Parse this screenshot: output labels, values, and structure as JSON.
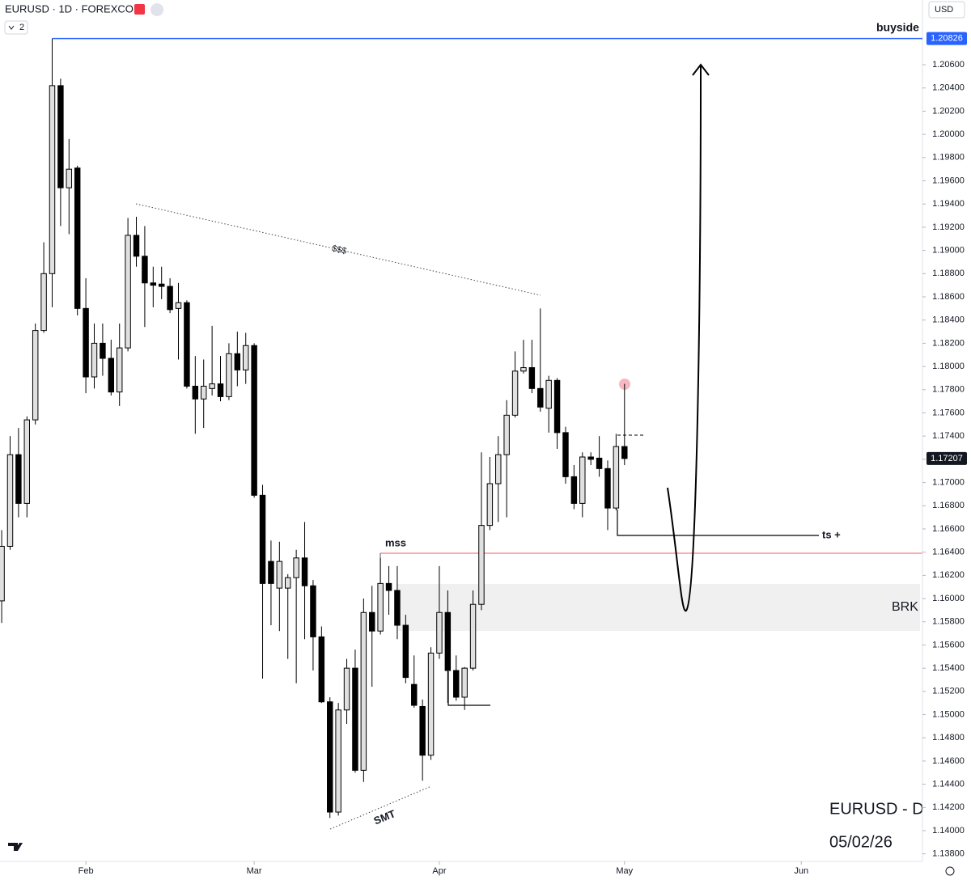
{
  "header": {
    "symbol": "EURUSD · 1D · FOREXCOM",
    "currency": "USD",
    "scale_button": "2"
  },
  "chart_data": {
    "type": "candlestick",
    "open": [
      1.1598,
      1.1645,
      1.1724,
      1.1682,
      1.1754,
      1.1831,
      1.188,
      1.2042,
      1.1954,
      1.1971,
      1.185,
      1.1791,
      1.182,
      1.1807,
      1.1778,
      1.1816,
      1.1913,
      1.1895,
      1.1872,
      1.1871,
      1.1869,
      1.185,
      1.1855,
      1.1783,
      1.1772,
      1.1781,
      1.1785,
      1.1774,
      1.1811,
      1.1797,
      1.1818,
      1.1689,
      1.1632,
      1.1609,
      1.1609,
      1.1618,
      1.1635,
      1.1611,
      1.1567,
      1.1511,
      1.1416,
      1.1504,
      1.154,
      1.1452,
      1.1588,
      1.1572,
      1.1613,
      1.1607,
      1.1577,
      1.1526,
      1.1507,
      1.1465,
      1.1553,
      1.1588,
      1.1538,
      1.1515,
      1.154,
      1.1595,
      1.1663,
      1.1699,
      1.1724,
      1.1758,
      1.1796,
      1.1799,
      1.1781,
      1.1764,
      1.1788,
      1.1743,
      1.1705,
      1.1682,
      1.1722,
      1.1721,
      1.1712,
      1.1678,
      1.1731
    ],
    "high": [
      1.1659,
      1.174,
      1.1747,
      1.1757,
      1.1837,
      1.1907,
      1.20826,
      1.2048,
      1.1996,
      1.1973,
      1.1876,
      1.1837,
      1.1837,
      1.1823,
      1.1837,
      1.1928,
      1.1929,
      1.1921,
      1.1886,
      1.1886,
      1.1876,
      1.1872,
      1.1857,
      1.1809,
      1.1806,
      1.1835,
      1.1809,
      1.182,
      1.183,
      1.1829,
      1.182,
      1.1698,
      1.165,
      1.1649,
      1.1621,
      1.1642,
      1.1666,
      1.1616,
      1.1576,
      1.1515,
      1.151,
      1.1548,
      1.1556,
      1.16,
      1.1611,
      1.1635,
      1.1628,
      1.1628,
      1.1586,
      1.1551,
      1.1513,
      1.1558,
      1.1628,
      1.1607,
      1.1551,
      1.1541,
      1.1607,
      1.1726,
      1.1722,
      1.174,
      1.1771,
      1.1813,
      1.1823,
      1.1823,
      1.185,
      1.1792,
      1.179,
      1.1748,
      1.1715,
      1.1726,
      1.1726,
      1.174,
      1.1719,
      1.1742,
      1.1785
    ],
    "low": [
      1.1579,
      1.1642,
      1.167,
      1.167,
      1.175,
      1.1829,
      1.1851,
      1.1921,
      1.1914,
      1.1844,
      1.1777,
      1.1781,
      1.1792,
      1.1775,
      1.1766,
      1.1813,
      1.1886,
      1.1834,
      1.1851,
      1.1858,
      1.1846,
      1.1806,
      1.1781,
      1.1742,
      1.1747,
      1.1775,
      1.177,
      1.1771,
      1.1783,
      1.1785,
      1.1687,
      1.1531,
      1.1577,
      1.1572,
      1.1548,
      1.1527,
      1.1565,
      1.1538,
      1.151,
      1.1411,
      1.1413,
      1.1492,
      1.145,
      1.1442,
      1.1524,
      1.1569,
      1.1586,
      1.1565,
      1.1527,
      1.1506,
      1.1443,
      1.1461,
      1.1548,
      1.151,
      1.1512,
      1.1504,
      1.1538,
      1.159,
      1.1659,
      1.1666,
      1.167,
      1.1756,
      1.1794,
      1.1777,
      1.1761,
      1.1743,
      1.1729,
      1.1699,
      1.1677,
      1.167,
      1.1715,
      1.1705,
      1.1659,
      1.1676,
      1.1715
    ],
    "close": [
      1.1645,
      1.1724,
      1.1682,
      1.1754,
      1.1831,
      1.188,
      1.2042,
      1.1954,
      1.197,
      1.185,
      1.1791,
      1.182,
      1.1807,
      1.1778,
      1.1816,
      1.1913,
      1.1895,
      1.1872,
      1.187,
      1.1869,
      1.1849,
      1.1855,
      1.1783,
      1.1772,
      1.1783,
      1.1785,
      1.1774,
      1.1811,
      1.1797,
      1.1818,
      1.1689,
      1.1613,
      1.1613,
      1.1632,
      1.1618,
      1.1635,
      1.1611,
      1.1567,
      1.1511,
      1.1416,
      1.1504,
      1.154,
      1.1452,
      1.1588,
      1.1572,
      1.1613,
      1.1607,
      1.1577,
      1.1532,
      1.1508,
      1.1465,
      1.1553,
      1.1588,
      1.1538,
      1.1515,
      1.154,
      1.1595,
      1.1663,
      1.1699,
      1.1724,
      1.1758,
      1.1796,
      1.1799,
      1.1781,
      1.1765,
      1.1788,
      1.1743,
      1.1705,
      1.1682,
      1.1722,
      1.172,
      1.1712,
      1.1678,
      1.1731,
      1.17207
    ],
    "up_color": "#e0e0e0",
    "down_color": "#000000",
    "wick_color": "#000000",
    "xlim": [
      -0.2,
      109.4
    ],
    "xticks": [
      {
        "value": 10,
        "label": "Feb"
      },
      {
        "value": 30,
        "label": "Mar"
      },
      {
        "value": 52,
        "label": "Apr"
      },
      {
        "value": 74,
        "label": "May"
      },
      {
        "value": 95,
        "label": "Jun"
      }
    ],
    "ylim": [
      1.13735,
      1.21158
    ],
    "yticks": [
      {
        "value": 1.138,
        "label": "1.13800"
      },
      {
        "value": 1.14,
        "label": "1.14000"
      },
      {
        "value": 1.142,
        "label": "1.14200"
      },
      {
        "value": 1.144,
        "label": "1.14400"
      },
      {
        "value": 1.146,
        "label": "1.14600"
      },
      {
        "value": 1.148,
        "label": "1.14800"
      },
      {
        "value": 1.15,
        "label": "1.15000"
      },
      {
        "value": 1.152,
        "label": "1.15200"
      },
      {
        "value": 1.154,
        "label": "1.15400"
      },
      {
        "value": 1.156,
        "label": "1.15600"
      },
      {
        "value": 1.158,
        "label": "1.15800"
      },
      {
        "value": 1.16,
        "label": "1.16000"
      },
      {
        "value": 1.162,
        "label": "1.16200"
      },
      {
        "value": 1.164,
        "label": "1.16400"
      },
      {
        "value": 1.166,
        "label": "1.16600"
      },
      {
        "value": 1.168,
        "label": "1.16800"
      },
      {
        "value": 1.17,
        "label": "1.17000"
      },
      {
        "value": 1.172,
        "label": "1.17200"
      },
      {
        "value": 1.174,
        "label": "1.17400"
      },
      {
        "value": 1.176,
        "label": "1.17600"
      },
      {
        "value": 1.178,
        "label": "1.17800"
      },
      {
        "value": 1.18,
        "label": "1.18000"
      },
      {
        "value": 1.182,
        "label": "1.18200"
      },
      {
        "value": 1.184,
        "label": "1.18400"
      },
      {
        "value": 1.186,
        "label": "1.18600"
      },
      {
        "value": 1.188,
        "label": "1.18800"
      },
      {
        "value": 1.19,
        "label": "1.19000"
      },
      {
        "value": 1.192,
        "label": "1.19200"
      },
      {
        "value": 1.194,
        "label": "1.19400"
      },
      {
        "value": 1.196,
        "label": "1.19600"
      },
      {
        "value": 1.198,
        "label": "1.19800"
      },
      {
        "value": 1.2,
        "label": "1.20000"
      },
      {
        "value": 1.202,
        "label": "1.20200"
      },
      {
        "value": 1.204,
        "label": "1.20400"
      },
      {
        "value": 1.206,
        "label": "1.20600"
      }
    ],
    "price_labels": [
      {
        "value": 1.20826,
        "label": "1.20826",
        "color": "#2962ff"
      },
      {
        "value": 1.17207,
        "label": "1.17207",
        "color": "#131722"
      }
    ],
    "annotations": {
      "buyside": "buyside",
      "liquidity": "$$$",
      "mss": "mss",
      "ts": "ts +",
      "brk": "BRK",
      "smt": "SMT",
      "caption": "EURUSD - D",
      "date": "05/02/26"
    }
  }
}
